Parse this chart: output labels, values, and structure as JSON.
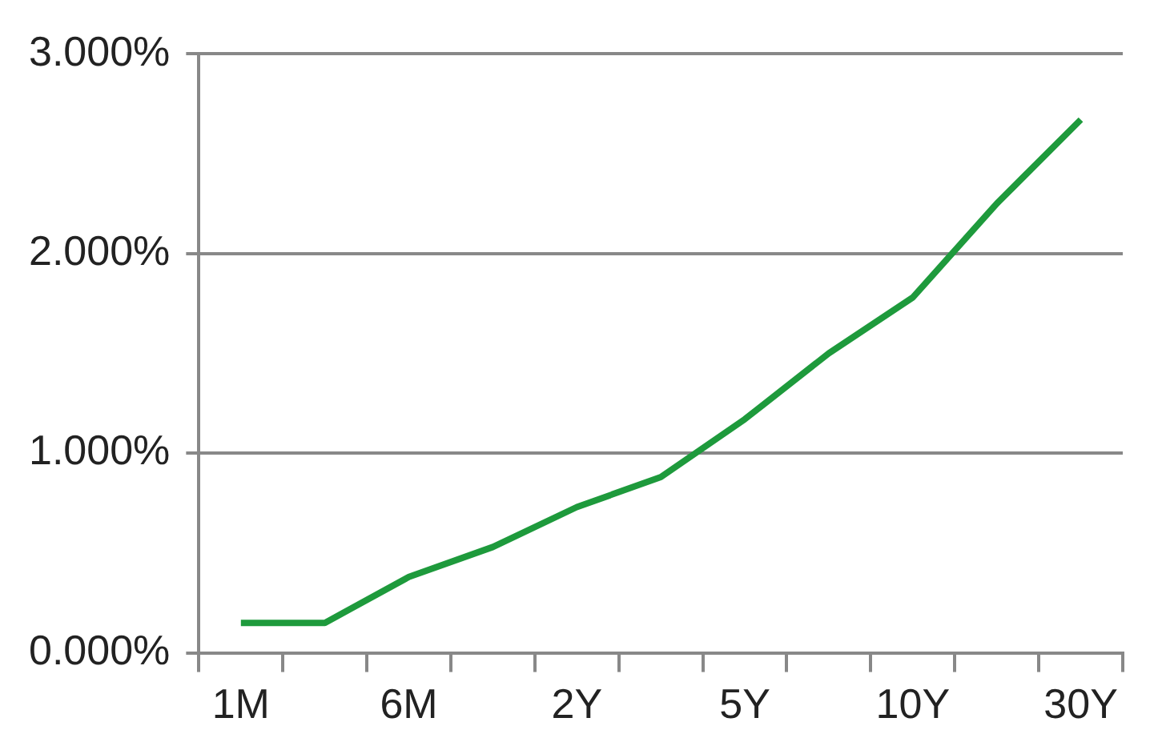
{
  "chart_data": {
    "type": "line",
    "categories": [
      "1M",
      null,
      "6M",
      null,
      "2Y",
      null,
      "5Y",
      null,
      "10Y",
      null,
      "30Y"
    ],
    "series": [
      {
        "color": "#1e9a3c",
        "values": [
          0.15,
          0.15,
          0.38,
          0.53,
          0.73,
          0.88,
          1.17,
          1.5,
          1.78,
          2.25,
          2.67
        ]
      }
    ],
    "ylim": [
      0,
      3
    ],
    "yticks": [
      {
        "value": 0,
        "label": "0.000%"
      },
      {
        "value": 1,
        "label": "1.000%"
      },
      {
        "value": 2,
        "label": "2.000%"
      },
      {
        "value": 3,
        "label": "3.000%"
      }
    ],
    "grid": "y",
    "legend": false,
    "marker": "none",
    "line_style": "solid"
  }
}
